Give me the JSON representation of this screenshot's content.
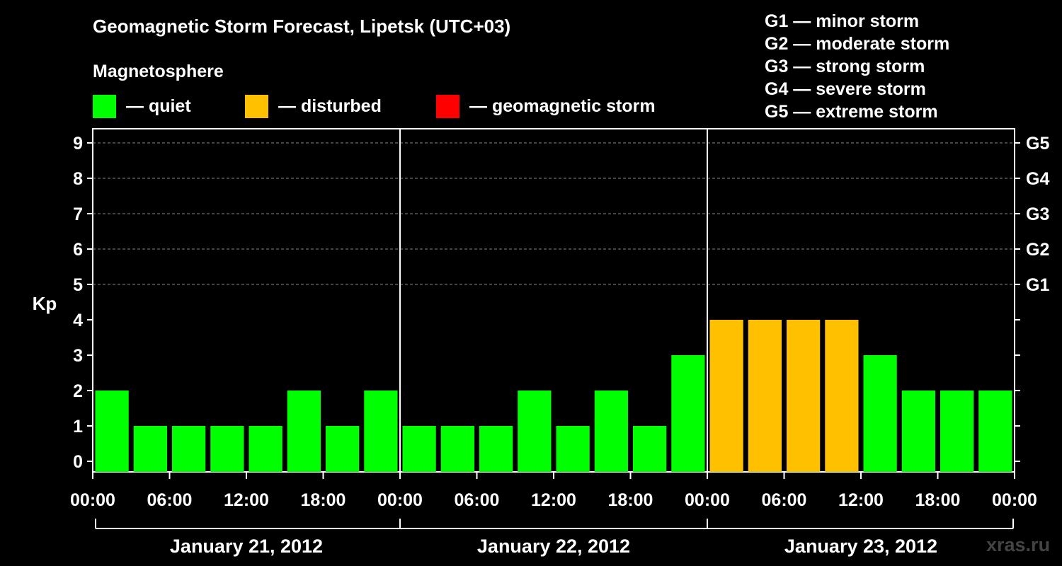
{
  "header": {
    "title": "Geomagnetic Storm Forecast, Lipetsk (UTC+03)",
    "subtitle": "Magnetosphere"
  },
  "legend": [
    {
      "label": "— quiet",
      "color": "#00ff00"
    },
    {
      "label": "— disturbed",
      "color": "#ffc000"
    },
    {
      "label": "— geomagnetic storm",
      "color": "#ff0000"
    }
  ],
  "storm_scale": [
    "G1 — minor storm",
    "G2 — moderate storm",
    "G3 — strong storm",
    "G4 — severe storm",
    "G5 — extreme storm"
  ],
  "chart_data": {
    "type": "bar",
    "title": "Geomagnetic Storm Forecast, Lipetsk (UTC+03)",
    "ylabel": "Kp",
    "ylim": [
      0,
      9
    ],
    "yticks": [
      "0",
      "1",
      "2",
      "3",
      "4",
      "5",
      "6",
      "7",
      "8",
      "9"
    ],
    "right_ticks": [
      {
        "kp": 5,
        "label": "G1"
      },
      {
        "kp": 6,
        "label": "G2"
      },
      {
        "kp": 7,
        "label": "G3"
      },
      {
        "kp": 8,
        "label": "G4"
      },
      {
        "kp": 9,
        "label": "G5"
      }
    ],
    "xtick_labels": [
      "00:00",
      "06:00",
      "12:00",
      "18:00",
      "00:00",
      "06:00",
      "12:00",
      "18:00",
      "00:00",
      "06:00",
      "12:00",
      "18:00",
      "00:00"
    ],
    "days": [
      "January 21, 2012",
      "January 22, 2012",
      "January 23, 2012"
    ],
    "interval_hours": 3,
    "values": [
      2,
      1,
      1,
      1,
      1,
      2,
      1,
      2,
      1,
      1,
      1,
      2,
      1,
      2,
      1,
      3,
      4,
      4,
      4,
      4,
      3,
      2,
      2,
      2
    ],
    "colors": {
      "quiet": "#00ff00",
      "disturbed": "#ffc000",
      "storm": "#ff0000"
    },
    "thresholds": {
      "disturbed": 4,
      "storm": 5
    },
    "grid": "dashed horizontal at Kp 5–9"
  },
  "watermark": "xras.ru"
}
